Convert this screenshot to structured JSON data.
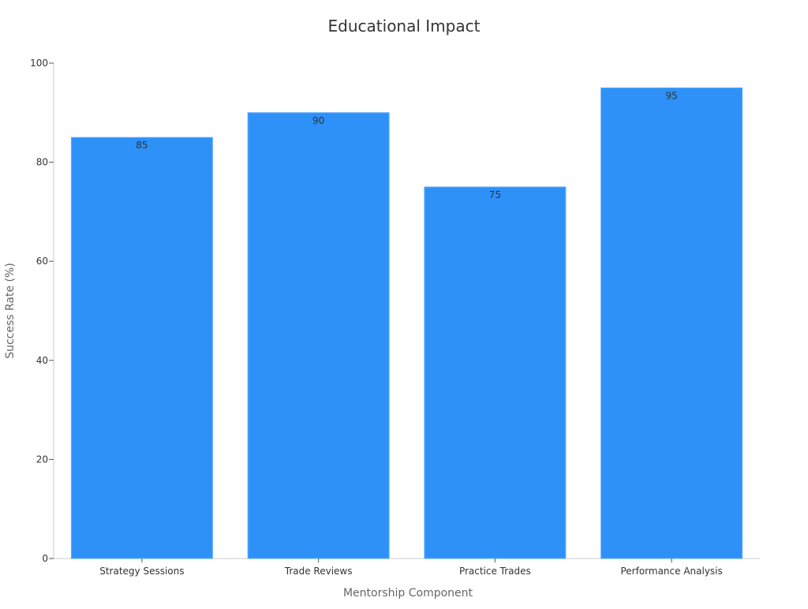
{
  "chart_data": {
    "type": "bar",
    "title": "Educational Impact",
    "xlabel": "Mentorship Component",
    "ylabel": "Success Rate (%)",
    "categories": [
      "Strategy Sessions",
      "Trade Reviews",
      "Practice Trades",
      "Performance Analysis"
    ],
    "values": [
      85,
      90,
      75,
      95
    ],
    "ylim": [
      0,
      100
    ],
    "yticks": [
      0,
      20,
      40,
      60,
      80,
      100
    ],
    "bar_color": "#2d91f8",
    "grid": false,
    "legend": "none"
  }
}
